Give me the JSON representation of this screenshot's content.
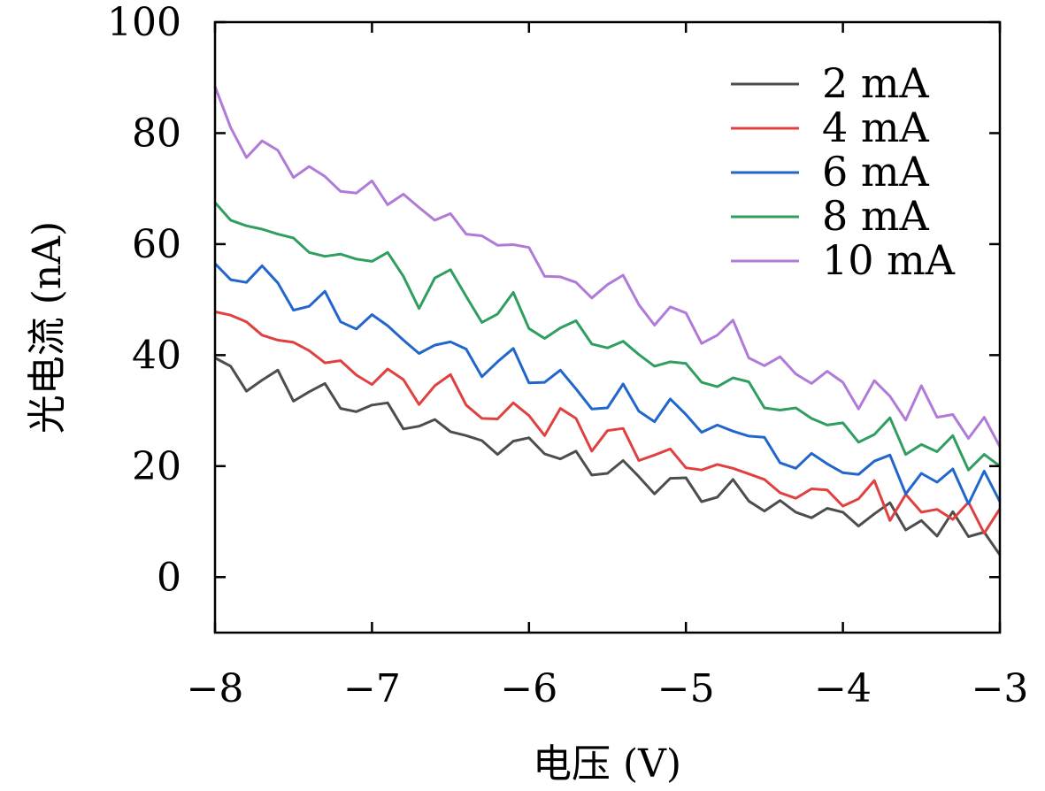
{
  "chart_data": {
    "type": "line",
    "title": "",
    "xlabel": "电压 (V)",
    "ylabel": "光电流 (nA)",
    "xlim": [
      -8,
      -3
    ],
    "ylim": [
      -10,
      100
    ],
    "xticks": [
      -8,
      -7,
      -6,
      -5,
      -4,
      -3
    ],
    "xtick_labels": [
      "−8",
      "−7",
      "−6",
      "−5",
      "−4",
      "−3"
    ],
    "yticks": [
      0,
      20,
      40,
      60,
      80,
      100
    ],
    "ytick_labels": [
      "0",
      "20",
      "40",
      "60",
      "80",
      "100"
    ],
    "grid": false,
    "legend_position": "top-right",
    "x": [
      -8.0,
      -7.9,
      -7.8,
      -7.7,
      -7.6,
      -7.5,
      -7.4,
      -7.3,
      -7.2,
      -7.1,
      -7.0,
      -6.9,
      -6.8,
      -6.7,
      -6.6,
      -6.5,
      -6.4,
      -6.3,
      -6.2,
      -6.1,
      -6.0,
      -5.9,
      -5.8,
      -5.7,
      -5.6,
      -5.5,
      -5.4,
      -5.3,
      -5.2,
      -5.1,
      -5.0,
      -4.9,
      -4.8,
      -4.7,
      -4.6,
      -4.5,
      -4.4,
      -4.3,
      -4.2,
      -4.1,
      -4.0,
      -3.9,
      -3.8,
      -3.7,
      -3.6,
      -3.5,
      -3.4,
      -3.3,
      -3.2,
      -3.1,
      -3.0
    ],
    "series": [
      {
        "name": "2 mA",
        "color": "#4d4d4d",
        "values": [
          39.5,
          38.0,
          33.5,
          35.5,
          37.3,
          31.7,
          33.4,
          34.9,
          30.4,
          29.8,
          31.0,
          31.4,
          26.7,
          27.2,
          28.4,
          26.2,
          25.5,
          24.6,
          22.1,
          24.5,
          25.1,
          22.2,
          21.3,
          22.7,
          18.4,
          18.7,
          21.0,
          18.1,
          15.0,
          17.8,
          17.9,
          13.6,
          14.4,
          17.6,
          13.7,
          11.9,
          13.8,
          11.7,
          10.7,
          12.4,
          11.7,
          9.2,
          11.4,
          13.4,
          8.5,
          10.2,
          7.4,
          11.8,
          7.3,
          8.1,
          4.0
        ]
      },
      {
        "name": "4 mA",
        "color": "#e04040",
        "values": [
          47.8,
          47.2,
          46.0,
          43.6,
          42.7,
          42.3,
          40.8,
          38.6,
          39.0,
          36.4,
          34.7,
          37.5,
          35.6,
          31.1,
          34.5,
          36.5,
          31.0,
          28.6,
          28.5,
          31.4,
          29.1,
          25.5,
          30.4,
          28.6,
          22.7,
          26.4,
          26.8,
          21.0,
          22.0,
          23.1,
          19.7,
          19.3,
          20.3,
          19.6,
          18.6,
          17.6,
          15.2,
          14.2,
          15.9,
          15.7,
          12.8,
          14.1,
          17.4,
          10.2,
          14.9,
          11.7,
          12.2,
          10.4,
          13.5,
          7.9,
          12.3
        ]
      },
      {
        "name": "6 mA",
        "color": "#2266cc",
        "values": [
          56.5,
          53.6,
          53.1,
          56.1,
          53.0,
          48.1,
          48.8,
          51.5,
          46.0,
          44.7,
          47.3,
          45.3,
          42.7,
          40.3,
          41.8,
          42.4,
          41.1,
          36.1,
          38.8,
          41.2,
          35.0,
          35.1,
          37.3,
          33.9,
          30.3,
          30.5,
          34.8,
          29.9,
          28.0,
          32.1,
          29.3,
          26.1,
          27.4,
          26.3,
          25.4,
          25.2,
          20.6,
          19.6,
          22.3,
          20.4,
          18.8,
          18.5,
          20.9,
          22.0,
          15.0,
          18.7,
          17.1,
          19.5,
          13.2,
          19.1,
          13.6
        ]
      },
      {
        "name": "8 mA",
        "color": "#2f9e60",
        "values": [
          67.5,
          64.3,
          63.3,
          62.7,
          61.8,
          61.1,
          58.5,
          57.8,
          58.2,
          57.3,
          56.9,
          58.5,
          54.2,
          48.4,
          53.9,
          55.4,
          50.6,
          45.9,
          47.4,
          51.3,
          44.8,
          43.0,
          44.9,
          46.2,
          42.0,
          41.3,
          42.5,
          40.1,
          38.0,
          38.8,
          38.5,
          35.1,
          34.3,
          35.9,
          35.2,
          30.5,
          30.1,
          30.5,
          28.6,
          27.4,
          27.8,
          24.3,
          25.7,
          28.7,
          22.1,
          23.9,
          22.6,
          25.5,
          19.3,
          22.1,
          20.0
        ]
      },
      {
        "name": "10 mA",
        "color": "#b07ad8",
        "values": [
          88.4,
          81.0,
          75.6,
          78.6,
          76.9,
          72.0,
          74.0,
          72.2,
          69.5,
          69.2,
          71.4,
          67.1,
          69.0,
          66.6,
          64.3,
          65.5,
          61.8,
          61.5,
          59.8,
          59.9,
          59.4,
          54.2,
          54.1,
          53.1,
          50.3,
          52.7,
          54.4,
          49.1,
          45.4,
          48.7,
          47.6,
          42.1,
          43.6,
          46.3,
          39.5,
          38.1,
          39.7,
          36.6,
          34.9,
          37.1,
          35.1,
          30.3,
          35.4,
          32.6,
          28.3,
          34.5,
          28.8,
          29.3,
          25.0,
          28.8,
          23.5
        ]
      }
    ]
  }
}
